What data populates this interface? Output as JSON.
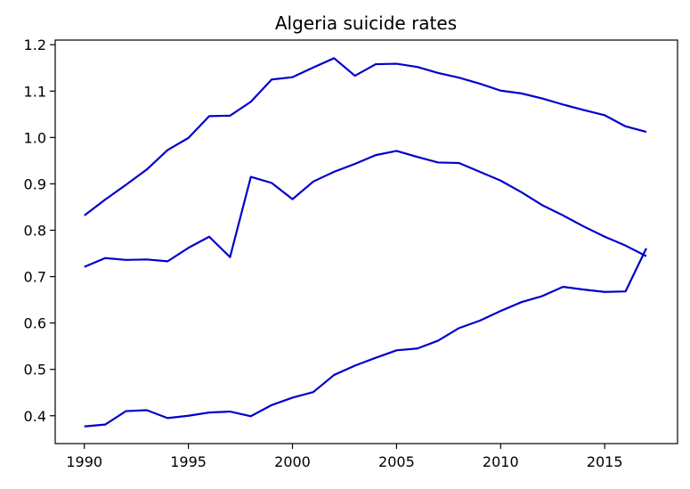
{
  "chart_data": {
    "type": "line",
    "title": "Algeria suicide rates",
    "xlabel": "",
    "ylabel": "",
    "xlim": [
      1988.6,
      2018.5
    ],
    "ylim": [
      0.34,
      1.21
    ],
    "xticks": [
      1990,
      1995,
      2000,
      2005,
      2010,
      2015
    ],
    "yticks": [
      0.4,
      0.5,
      0.6,
      0.7,
      0.8,
      0.9,
      1.0,
      1.1,
      1.2
    ],
    "ytick_labels": [
      "0.4",
      "0.5",
      "0.6",
      "0.7",
      "0.8",
      "0.9",
      "1.0",
      "1.1",
      "1.2"
    ],
    "grid": false,
    "line_color": "#0000cc",
    "x": [
      1990,
      1991,
      1992,
      1993,
      1994,
      1995,
      1996,
      1997,
      1998,
      1999,
      2000,
      2001,
      2002,
      2003,
      2004,
      2005,
      2006,
      2007,
      2008,
      2009,
      2010,
      2011,
      2012,
      2013,
      2014,
      2015,
      2016,
      2017
    ],
    "series": [
      {
        "values": [
          0.832,
          0.866,
          0.898,
          0.931,
          0.973,
          0.999,
          1.046,
          1.047,
          1.077,
          1.125,
          1.13,
          1.151,
          1.171,
          1.133,
          1.158,
          1.159,
          1.152,
          1.139,
          1.129,
          1.116,
          1.101,
          1.095,
          1.084,
          1.071,
          1.059,
          1.048,
          1.024,
          1.012
        ]
      },
      {
        "values": [
          0.721,
          0.74,
          0.736,
          0.737,
          0.733,
          0.762,
          0.786,
          0.742,
          0.915,
          0.902,
          0.867,
          0.905,
          0.926,
          0.943,
          0.962,
          0.971,
          0.958,
          0.946,
          0.945,
          0.926,
          0.907,
          0.882,
          0.854,
          0.832,
          0.808,
          0.786,
          0.767,
          0.744
        ]
      },
      {
        "values": [
          0.377,
          0.381,
          0.41,
          0.412,
          0.395,
          0.4,
          0.407,
          0.409,
          0.399,
          0.423,
          0.439,
          0.451,
          0.488,
          0.508,
          0.525,
          0.541,
          0.545,
          0.562,
          0.589,
          0.605,
          0.626,
          0.645,
          0.658,
          0.678,
          0.672,
          0.667,
          0.668,
          0.761
        ]
      }
    ]
  }
}
